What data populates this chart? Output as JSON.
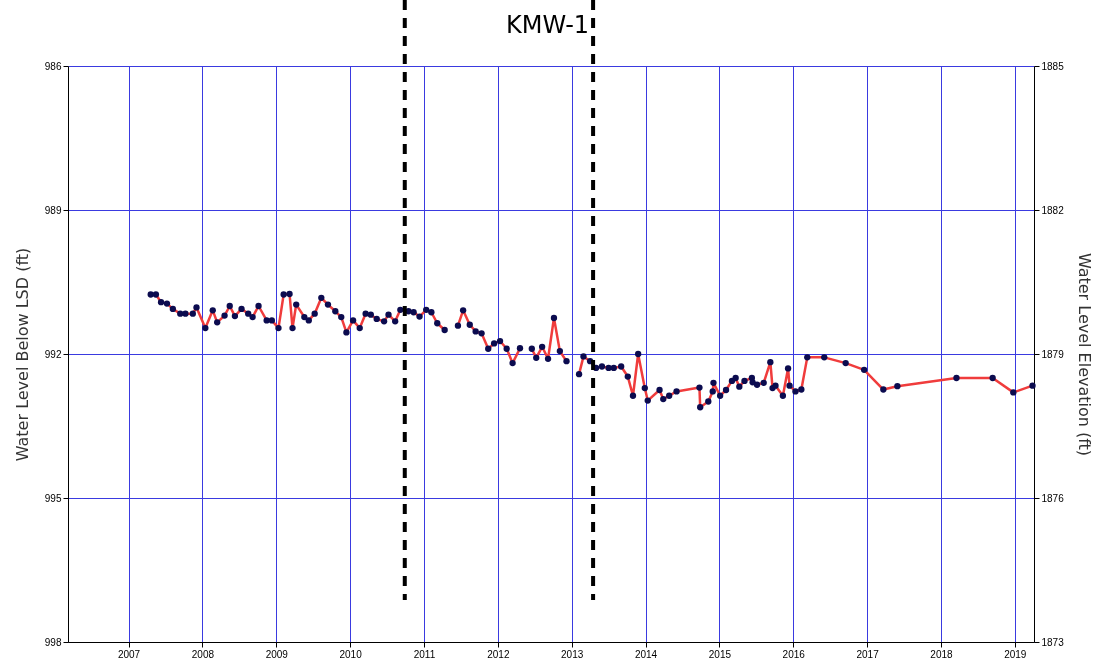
{
  "chart_data": {
    "type": "line",
    "ylabel": "Water Level Below LSD (ft)",
    "y2label": "Water Level Elevation (ft)",
    "xlim": [
      2006.18,
      2019.26
    ],
    "xticks": [
      2007,
      2008,
      2009,
      2010,
      2011,
      2012,
      2013,
      2014,
      2015,
      2016,
      2017,
      2018,
      2019
    ],
    "ylim": [
      998,
      986
    ],
    "yticks": [
      986,
      989,
      992,
      995,
      998
    ],
    "y2lim": [
      1873,
      1885
    ],
    "y2ticks": [
      1873,
      1876,
      1879,
      1882,
      1885
    ],
    "grid": true,
    "marker": "circle",
    "line_style": "solid",
    "series": [
      {
        "color": "#f03c3c",
        "x": [
          2007.3,
          2007.37,
          2007.44,
          2007.52,
          2007.6,
          2007.7,
          2007.77,
          2007.87,
          2007.92,
          2008.04,
          2008.14,
          2008.2,
          2008.3,
          2008.37,
          2008.44,
          2008.53,
          2008.62,
          2008.68,
          2008.76,
          2008.87,
          2008.94,
          2009.03,
          2009.1,
          2009.18,
          2009.22,
          2009.27,
          2009.38,
          2009.44,
          2009.52,
          2009.61,
          2009.7,
          2009.8,
          2009.88,
          2009.95,
          2010.04,
          2010.13,
          2010.21,
          2010.28,
          2010.36,
          2010.46,
          2010.52,
          2010.61,
          2010.68,
          2010.79,
          2010.86,
          2010.94,
          2011.03,
          2011.1,
          2011.18,
          2011.28,
          2011.37,
          2011.46,
          2011.53,
          2011.62,
          2011.7,
          2011.78,
          2011.87,
          2011.95,
          2012.03,
          2012.12,
          2012.2,
          2012.3,
          2012.38,
          2012.46,
          2012.52,
          2012.6,
          2012.68,
          2012.76,
          2012.84,
          2012.93,
          2013.02,
          2013.1,
          2013.16,
          2013.25,
          2013.33,
          2013.41,
          2013.5,
          2013.57,
          2013.67,
          2013.76,
          2013.83,
          2013.9,
          2013.99,
          2014.03,
          2014.19,
          2014.24,
          2014.32,
          2014.42,
          2014.73,
          2014.74,
          2014.85,
          2014.91,
          2014.92,
          2015.01,
          2015.09,
          2015.17,
          2015.22,
          2015.27,
          2015.34,
          2015.44,
          2015.45,
          2015.51,
          2015.6,
          2015.69,
          2015.72,
          2015.76,
          2015.86,
          2015.93,
          2015.95,
          2016.03,
          2016.11,
          2016.19,
          2016.42,
          2016.71,
          2016.96,
          2017.22,
          2017.41,
          2018.21,
          2018.7,
          2018.98,
          2019.24
        ],
        "values": [
          990.76,
          990.76,
          990.92,
          990.95,
          991.06,
          991.16,
          991.16,
          991.16,
          991.03,
          991.46,
          991.09,
          991.34,
          991.2,
          991.0,
          991.21,
          991.06,
          991.16,
          991.23,
          991.0,
          991.3,
          991.3,
          991.46,
          990.76,
          990.75,
          991.46,
          990.97,
          991.23,
          991.3,
          991.16,
          990.83,
          990.97,
          991.11,
          991.23,
          991.55,
          991.3,
          991.46,
          991.16,
          991.18,
          991.27,
          991.32,
          991.18,
          991.32,
          991.08,
          991.11,
          991.13,
          991.22,
          991.08,
          991.13,
          991.36,
          991.5,
          null,
          991.41,
          991.09,
          991.39,
          991.53,
          991.57,
          991.89,
          991.78,
          991.73,
          991.89,
          992.19,
          991.88,
          null,
          991.89,
          992.08,
          991.85,
          992.1,
          991.25,
          991.94,
          992.15,
          null,
          992.42,
          992.05,
          992.15,
          992.29,
          992.26,
          992.29,
          992.29,
          992.26,
          992.47,
          992.87,
          992.0,
          992.71,
          992.97,
          992.75,
          992.94,
          992.87,
          992.78,
          992.7,
          993.11,
          992.99,
          992.78,
          992.6,
          992.87,
          992.75,
          992.56,
          992.5,
          992.68,
          992.56,
          992.5,
          992.59,
          992.64,
          992.6,
          992.17,
          992.71,
          992.66,
          992.87,
          992.3,
          992.66,
          992.78,
          992.74,
          992.07,
          992.07,
          992.19,
          992.33,
          992.74,
          992.67,
          992.5,
          992.5,
          992.8,
          992.66
        ]
      }
    ],
    "ref_lines": [
      {
        "axis": "x",
        "value": 2010.74,
        "label": null,
        "color": "#000000",
        "line_style": "dashed"
      },
      {
        "axis": "x",
        "value": 2013.29,
        "label": "KMW-1",
        "color": "#000000",
        "line_style": "dashed"
      }
    ]
  }
}
